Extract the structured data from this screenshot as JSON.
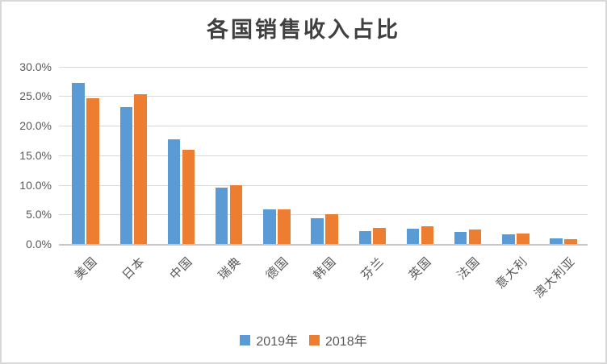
{
  "window": {
    "background": "#ffffff",
    "border_color": "#d9d9d9"
  },
  "chart_data": {
    "type": "bar",
    "title": "各国销售收入占比",
    "xlabel": "",
    "ylabel": "",
    "categories": [
      "美国",
      "日本",
      "中国",
      "瑞典",
      "德国",
      "韩国",
      "芬兰",
      "英国",
      "法国",
      "意大利",
      "澳大利亚"
    ],
    "series": [
      {
        "name": "2019年",
        "color": "#5B9BD5",
        "values": [
          27.3,
          23.1,
          17.7,
          9.5,
          5.9,
          4.3,
          2.2,
          2.6,
          2.1,
          1.6,
          0.9
        ]
      },
      {
        "name": "2018年",
        "color": "#ED7D31",
        "values": [
          24.6,
          25.3,
          16.0,
          10.0,
          5.9,
          5.1,
          2.7,
          3.0,
          2.5,
          1.8,
          0.8
        ]
      }
    ],
    "ylim": [
      0,
      30
    ],
    "ytick_step": 5,
    "ytick_labels": [
      "0.0%",
      "5.0%",
      "10.0%",
      "15.0%",
      "20.0%",
      "25.0%",
      "30.0%"
    ],
    "grid": true,
    "gridline_color": "#d9d9d9",
    "axis_line_color": "#c6c6c6",
    "tick_label_color": "#595959",
    "title_color": "#404040",
    "legend_position": "bottom",
    "x_labels_rotation_deg": -45
  }
}
